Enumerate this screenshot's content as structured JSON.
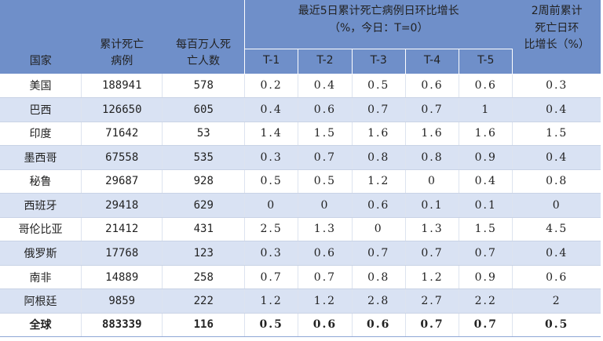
{
  "header": {
    "country": "国家",
    "cumulative_deaths": [
      "累计死亡",
      "病例"
    ],
    "deaths_per_million": [
      "每百万人死",
      "亡人数"
    ],
    "recent_growth": [
      "最近5日累计死亡病例日环比增长",
      "（%，今日：T=0）"
    ],
    "sub_columns": [
      "T-1",
      "T-2",
      "T-3",
      "T-4",
      "T-5"
    ],
    "two_weeks_ago": [
      "2周前累计",
      "死亡日环",
      "比增长（%）"
    ]
  },
  "rows": [
    {
      "country": "美国",
      "deaths": "188941",
      "per_million": "578",
      "t1": "0.2",
      "t2": "0.4",
      "t3": "0.5",
      "t4": "0.6",
      "t5": "0.6",
      "two_weeks": "0.3"
    },
    {
      "country": "巴西",
      "deaths": "126650",
      "per_million": "605",
      "t1": "0.4",
      "t2": "0.6",
      "t3": "0.7",
      "t4": "0.7",
      "t5": "1",
      "two_weeks": "0.4"
    },
    {
      "country": "印度",
      "deaths": "71642",
      "per_million": "53",
      "t1": "1.4",
      "t2": "1.5",
      "t3": "1.6",
      "t4": "1.6",
      "t5": "1.6",
      "two_weeks": "1.5"
    },
    {
      "country": "墨西哥",
      "deaths": "67558",
      "per_million": "535",
      "t1": "0.3",
      "t2": "0.7",
      "t3": "0.8",
      "t4": "0.8",
      "t5": "0.9",
      "two_weeks": "0.4"
    },
    {
      "country": "秘鲁",
      "deaths": "29687",
      "per_million": "928",
      "t1": "0.5",
      "t2": "0.5",
      "t3": "1.2",
      "t4": "0",
      "t5": "0.4",
      "two_weeks": "0.8"
    },
    {
      "country": "西班牙",
      "deaths": "29418",
      "per_million": "629",
      "t1": "0",
      "t2": "0",
      "t3": "0.6",
      "t4": "0.1",
      "t5": "0.1",
      "two_weeks": "0"
    },
    {
      "country": "哥伦比亚",
      "deaths": "21412",
      "per_million": "431",
      "t1": "2.5",
      "t2": "1.3",
      "t3": "0",
      "t4": "1.3",
      "t5": "1.5",
      "two_weeks": "4.5"
    },
    {
      "country": "俄罗斯",
      "deaths": "17768",
      "per_million": "123",
      "t1": "0.3",
      "t2": "0.6",
      "t3": "0.7",
      "t4": "0.7",
      "t5": "0.7",
      "two_weeks": "0.4"
    },
    {
      "country": "南非",
      "deaths": "14889",
      "per_million": "258",
      "t1": "0.7",
      "t2": "0.7",
      "t3": "0.8",
      "t4": "1.2",
      "t5": "0.9",
      "two_weeks": "0.6"
    },
    {
      "country": "阿根廷",
      "deaths": "9859",
      "per_million": "222",
      "t1": "1.2",
      "t2": "1.2",
      "t3": "2.8",
      "t4": "2.7",
      "t5": "2.2",
      "two_weeks": "2"
    }
  ],
  "total": {
    "country": "全球",
    "deaths": "883339",
    "per_million": "116",
    "t1": "0.5",
    "t2": "0.6",
    "t3": "0.6",
    "t4": "0.7",
    "t5": "0.7",
    "two_weeks": "0.5"
  },
  "colors": {
    "header_bg": "#6f8fc9",
    "row_shade": "#d9e2f3"
  }
}
